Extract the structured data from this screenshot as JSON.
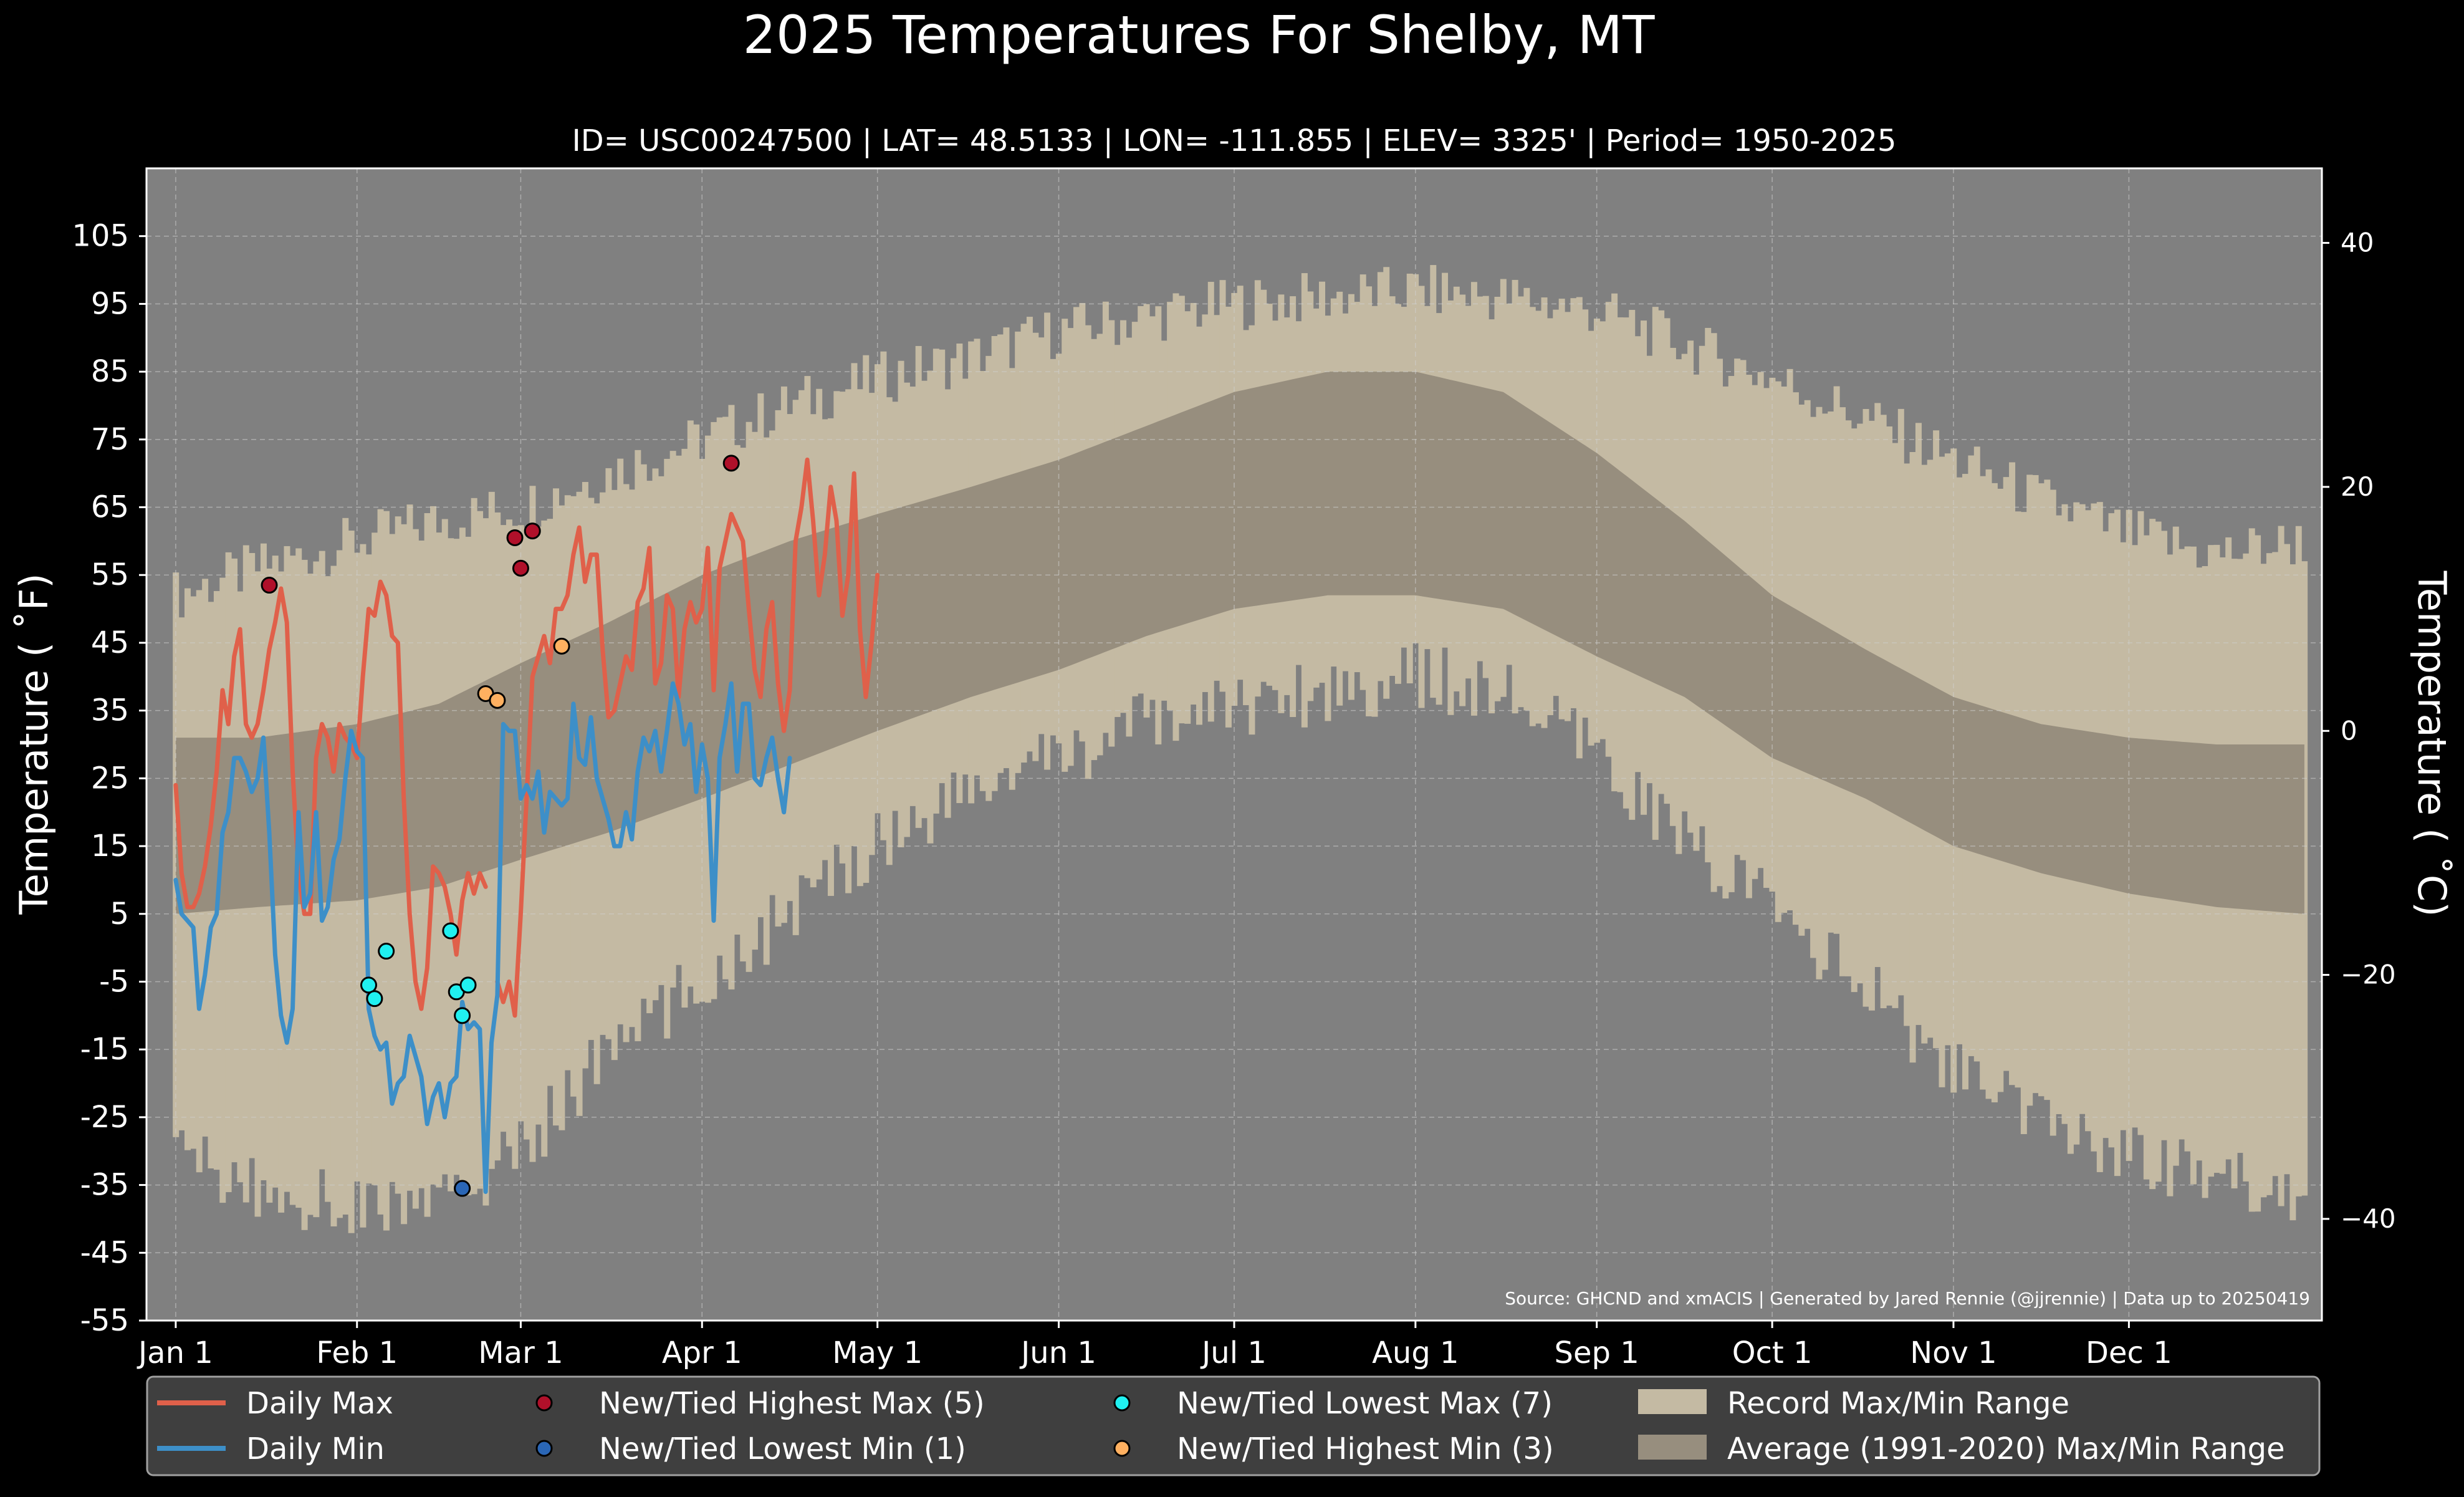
{
  "chart_data": {
    "type": "line",
    "title": "2025 Temperatures For Shelby, MT",
    "subtitle": "ID= USC00247500 | LAT= 48.5133 | LON= -111.855 | ELEV= 3325' | Period= 1950-2025",
    "ylabel": "Temperature ($^\\circ$F)",
    "ylabel_display": "Temperature ( ˚F)",
    "ylabel_right": "Temperature ( ˚C)",
    "source_note": "Source: GHCND and xmACIS | Generated by Jared Rennie (@jjrennie) | Data up to 20250419",
    "ylim": [
      -55,
      115
    ],
    "y_ticks": [
      105,
      95,
      85,
      75,
      65,
      55,
      45,
      35,
      25,
      15,
      5,
      -5,
      -15,
      -25,
      -35,
      -45,
      -55
    ],
    "y_ticks_c": [
      40,
      20,
      0,
      -20,
      -40
    ],
    "xlim_day": [
      -4,
      368
    ],
    "x_ticks": [
      {
        "label": "Jan 1",
        "day": 1
      },
      {
        "label": "Feb 1",
        "day": 32
      },
      {
        "label": "Mar 1",
        "day": 60
      },
      {
        "label": "Apr 1",
        "day": 91
      },
      {
        "label": "May 1",
        "day": 121
      },
      {
        "label": "Jun 1",
        "day": 152
      },
      {
        "label": "Jul 1",
        "day": 182
      },
      {
        "label": "Aug 1",
        "day": 213
      },
      {
        "label": "Sep 1",
        "day": 244
      },
      {
        "label": "Oct 1",
        "day": 274
      },
      {
        "label": "Nov 1",
        "day": 305
      },
      {
        "label": "Dec 1",
        "day": 335
      }
    ],
    "grid": true,
    "legend_position": "bottom",
    "legend": [
      {
        "label": "Daily Max",
        "kind": "line",
        "color": "#e0604a"
      },
      {
        "label": "Daily Min",
        "kind": "line",
        "color": "#3d8fc8"
      },
      {
        "label": "New/Tied Highest Max (5)",
        "kind": "marker",
        "color": "#b0102a"
      },
      {
        "label": "New/Tied Lowest Min (1)",
        "kind": "marker",
        "color": "#2a66b6"
      },
      {
        "label": "New/Tied Lowest Max (7)",
        "kind": "marker",
        "color": "#20f0f0"
      },
      {
        "label": "New/Tied Highest Min (3)",
        "kind": "marker",
        "color": "#ffb060"
      },
      {
        "label": "Record Max/Min Range",
        "kind": "patch",
        "color": "#c4baa3"
      },
      {
        "label": "Average (1991-2020) Max/Min Range",
        "kind": "patch",
        "color": "#978e7e"
      }
    ],
    "colors": {
      "background": "#000000",
      "plot_background": "#808080",
      "record_range": "#c4baa3",
      "average_range": "#978e7e",
      "daily_max": "#e0604a",
      "daily_min": "#3d8fc8"
    },
    "record_range_keypoints": {
      "days": [
        1,
        15,
        32,
        46,
        60,
        75,
        91,
        106,
        121,
        137,
        152,
        167,
        182,
        198,
        213,
        228,
        244,
        259,
        274,
        290,
        305,
        320,
        335,
        350,
        365
      ],
      "record_max": [
        52,
        56,
        60,
        63,
        65,
        70,
        75,
        80,
        84,
        87,
        91,
        93,
        95,
        96,
        97,
        96,
        94,
        89,
        84,
        78,
        72,
        66,
        61,
        58,
        60
      ],
      "record_min": [
        -30,
        -36,
        -38,
        -38,
        -30,
        -15,
        -5,
        5,
        16,
        23,
        28,
        33,
        36,
        38,
        40,
        38,
        28,
        16,
        6,
        -6,
        -18,
        -26,
        -30,
        -34,
        -36
      ],
      "avg_max": [
        31,
        31,
        33,
        36,
        42,
        48,
        55,
        60,
        64,
        68,
        72,
        77,
        82,
        85,
        85,
        82,
        73,
        63,
        52,
        44,
        37,
        33,
        31,
        30,
        30
      ],
      "avg_min": [
        5,
        6,
        7,
        9,
        13,
        17,
        22,
        27,
        32,
        37,
        41,
        46,
        50,
        52,
        52,
        50,
        43,
        37,
        28,
        22,
        15,
        11,
        8,
        6,
        5
      ]
    },
    "series": [
      {
        "name": "Daily Max",
        "x_start_day": 1,
        "values": [
          24,
          11,
          6,
          6,
          8,
          12,
          18,
          26,
          38,
          33,
          43,
          47,
          33,
          31,
          33,
          38,
          44,
          48,
          53,
          48,
          26,
          11,
          5,
          5,
          28,
          33,
          31,
          26,
          33,
          31,
          30,
          28,
          40,
          50,
          49,
          54,
          52,
          46,
          45,
          22,
          5,
          -5,
          -9,
          -3,
          12,
          11,
          9,
          5,
          -1,
          7,
          11,
          8,
          11,
          9,
          null,
          -5,
          -8,
          -5,
          -10,
          5,
          22,
          40,
          43,
          46,
          42,
          50,
          50,
          52,
          58,
          62,
          54,
          58,
          58,
          44,
          34,
          35,
          39,
          43,
          41,
          51,
          53,
          59,
          39,
          42,
          52,
          50,
          37,
          47,
          51,
          48,
          50,
          59,
          38,
          56,
          60,
          64,
          62,
          60,
          50,
          41,
          37,
          47,
          51,
          39,
          32,
          38,
          60,
          65,
          72,
          63,
          52,
          58,
          68,
          63,
          49,
          55,
          70,
          47,
          37,
          45,
          55
        ]
      },
      {
        "name": "Daily Min",
        "x_start_day": 1,
        "values": [
          10,
          5,
          4,
          3,
          -9,
          -4,
          3,
          5,
          17,
          20,
          28,
          28,
          26,
          23,
          25,
          31,
          17,
          -1,
          -10,
          -14,
          -9,
          20,
          6,
          8,
          20,
          4,
          6,
          13,
          16,
          25,
          32,
          29,
          28,
          -9,
          -13,
          -15,
          -14,
          -23,
          -20,
          -19,
          -13,
          -16,
          -19,
          -26,
          -22,
          -20,
          -25,
          -20,
          -19,
          -8,
          -12,
          -11,
          -12,
          -36,
          -14,
          -7,
          33,
          32,
          32,
          22,
          24,
          22,
          26,
          17,
          23,
          22,
          21,
          22,
          36,
          28,
          27,
          34,
          25,
          22,
          19,
          15,
          15,
          20,
          16,
          26,
          31,
          29,
          32,
          26,
          32,
          39,
          36,
          30,
          33,
          23,
          30,
          25,
          4,
          28,
          33,
          39,
          26,
          36,
          36,
          25,
          24,
          28,
          31,
          25,
          20,
          28
        ]
      }
    ],
    "record_points": [
      {
        "type": "New/Tied Highest Max (5)",
        "points": [
          [
            17,
            53.5
          ],
          [
            59,
            60.5
          ],
          [
            60,
            56
          ],
          [
            62,
            61.5
          ],
          [
            96,
            71.5
          ]
        ]
      },
      {
        "type": "New/Tied Lowest Min (1)",
        "points": [
          [
            50,
            -35.5
          ]
        ]
      },
      {
        "type": "New/Tied Lowest Max (7)",
        "points": [
          [
            34,
            -5.5
          ],
          [
            35,
            -7.5
          ],
          [
            37,
            -0.5
          ],
          [
            48,
            2.5
          ],
          [
            49,
            -6.5
          ],
          [
            50,
            -10
          ],
          [
            51,
            -5.5
          ]
        ]
      },
      {
        "type": "New/Tied Highest Min (3)",
        "points": [
          [
            54,
            37.5
          ],
          [
            56,
            36.5
          ],
          [
            67,
            44.5
          ]
        ]
      }
    ]
  }
}
